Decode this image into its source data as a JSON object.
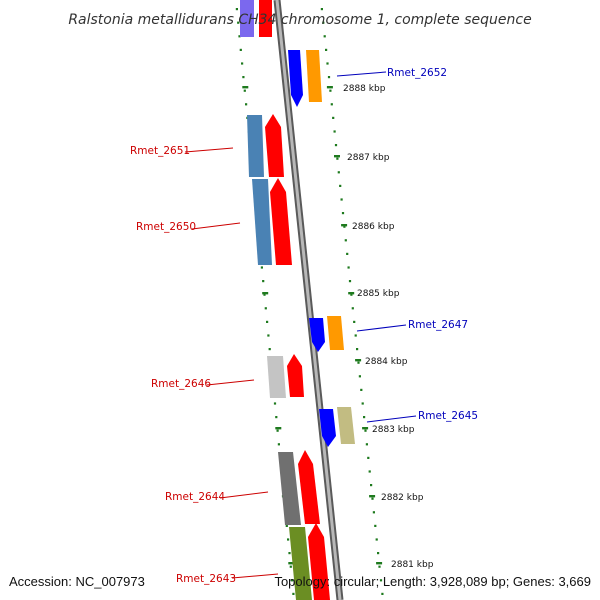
{
  "title": "Ralstonia metallidurans CH34 chromosome 1, complete sequence",
  "footer": {
    "accession": "Accession: NC_007973",
    "info": "Topology: circular; Length: 3,928,089 bp; Genes: 3,669"
  },
  "kbp_ticks": [
    "2888 kbp",
    "2887 kbp",
    "2886 kbp",
    "2885 kbp",
    "2884 kbp",
    "2883 kbp",
    "2882 kbp",
    "2881 kbp"
  ],
  "colors": {
    "backbone": "#8c8c8c",
    "tick": "#1e7a1e",
    "forward_label": "#0000bb",
    "reverse_label": "#cc0000"
  },
  "genes": [
    {
      "label": "Rmet_2652",
      "strand": "forward",
      "color": "#ff9900"
    },
    {
      "label": "Rmet_2651",
      "strand": "reverse",
      "color": "#4a82b4"
    },
    {
      "label": "Rmet_2650",
      "strand": "reverse",
      "color": "#4a82b4"
    },
    {
      "label": "Rmet_2647",
      "strand": "forward",
      "color": "#ff9900"
    },
    {
      "label": "Rmet_2646",
      "strand": "reverse",
      "color": "#c4c4c4"
    },
    {
      "label": "Rmet_2645",
      "strand": "forward",
      "color": "#c2bc82"
    },
    {
      "label": "Rmet_2644",
      "strand": "reverse",
      "color": "#707070"
    },
    {
      "label": "Rmet_2643",
      "strand": "reverse",
      "color": "#6b8e23"
    }
  ]
}
